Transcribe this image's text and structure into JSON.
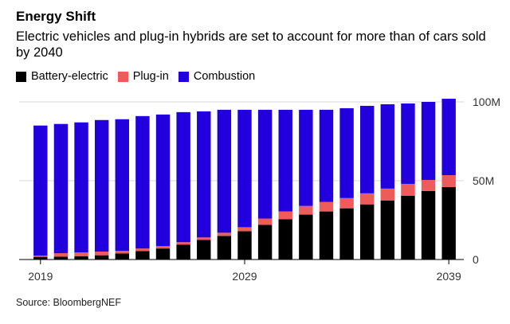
{
  "title": "Energy Shift",
  "subtitle": "Electric vehicles and plug-in hybrids are set to account for more than of cars sold by 2040",
  "source": "Source: BloombergNEF",
  "colors": {
    "battery_electric": "#000000",
    "plug_in": "#ee5b5b",
    "combustion": "#2200dd"
  },
  "chart_data": {
    "type": "bar",
    "stacked": true,
    "categories": [
      "2019",
      "2020",
      "2021",
      "2022",
      "2023",
      "2024",
      "2025",
      "2026",
      "2027",
      "2028",
      "2029",
      "2030",
      "2031",
      "2032",
      "2033",
      "2034",
      "2035",
      "2036",
      "2037",
      "2038",
      "2039"
    ],
    "series": [
      {
        "name": "Battery-electric",
        "color": "#000000",
        "values": [
          1.7,
          1.8,
          2.0,
          2.7,
          3.8,
          5.4,
          7.0,
          9.5,
          12.5,
          15.0,
          18.0,
          22.0,
          25.5,
          28.5,
          30.5,
          32.5,
          35.0,
          37.5,
          40.5,
          43.5,
          46.0
        ]
      },
      {
        "name": "Plug-in",
        "color": "#ee5b5b",
        "values": [
          0.8,
          2.2,
          2.5,
          2.3,
          1.7,
          1.6,
          1.5,
          1.5,
          1.5,
          2.0,
          2.5,
          4.0,
          5.0,
          5.5,
          6.0,
          6.5,
          7.0,
          7.5,
          7.5,
          7.0,
          7.5
        ]
      },
      {
        "name": "Combustion",
        "color": "#2200dd",
        "values": [
          82.5,
          82.0,
          82.5,
          83.5,
          83.5,
          84.0,
          83.5,
          82.5,
          80.0,
          78.0,
          74.5,
          69.0,
          64.5,
          61.0,
          58.5,
          57.0,
          55.5,
          53.5,
          51.0,
          49.5,
          48.5
        ]
      }
    ],
    "y_ticks": [
      {
        "value": 0,
        "label": "0"
      },
      {
        "value": 50,
        "label": "50M"
      },
      {
        "value": 100,
        "label": "100M"
      }
    ],
    "x_ticks": [
      {
        "category": "2019",
        "label": "2019"
      },
      {
        "category": "2029",
        "label": "2029"
      },
      {
        "category": "2039",
        "label": "2039"
      }
    ],
    "ylim": [
      0,
      100
    ],
    "grid": true,
    "legend_position": "top-left"
  }
}
